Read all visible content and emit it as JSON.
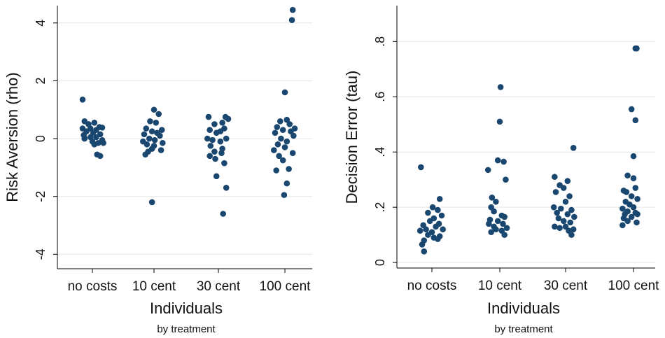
{
  "chart_data": [
    {
      "type": "scatter",
      "xlabel": "Individuals",
      "subtitle": "by treatment",
      "ylabel": "Risk Aversion (rho)",
      "categories": [
        "no costs",
        "10 cent",
        "30 cent",
        "100 cent"
      ],
      "ylim": [
        -4.5,
        4.6
      ],
      "yticks": [
        -4,
        -2,
        0,
        2,
        4
      ],
      "ytick_labels": [
        "-4",
        "-2",
        "0",
        "2",
        "4"
      ],
      "grid": true,
      "marker_color": "#1a476f",
      "groups": [
        {
          "category": "no costs",
          "points": [
            {
              "x": -0.25,
              "y": 1.35
            },
            {
              "x": -0.2,
              "y": 0.6
            },
            {
              "x": 0.05,
              "y": 0.55
            },
            {
              "x": -0.1,
              "y": 0.5
            },
            {
              "x": 0.18,
              "y": 0.4
            },
            {
              "x": -0.25,
              "y": 0.35
            },
            {
              "x": -0.05,
              "y": 0.35
            },
            {
              "x": 0.25,
              "y": 0.38
            },
            {
              "x": 0.1,
              "y": 0.3
            },
            {
              "x": -0.15,
              "y": 0.25
            },
            {
              "x": 0.02,
              "y": 0.2
            },
            {
              "x": -0.22,
              "y": 0.12
            },
            {
              "x": 0.2,
              "y": 0.15
            },
            {
              "x": -0.05,
              "y": 0.05
            },
            {
              "x": 0.1,
              "y": 0.05
            },
            {
              "x": -0.2,
              "y": 0.0
            },
            {
              "x": 0.25,
              "y": -0.05
            },
            {
              "x": 0.0,
              "y": -0.1
            },
            {
              "x": 0.15,
              "y": -0.15
            },
            {
              "x": 0.28,
              "y": -0.15
            },
            {
              "x": 0.05,
              "y": -0.2
            },
            {
              "x": 0.12,
              "y": -0.55
            },
            {
              "x": 0.2,
              "y": -0.6
            }
          ]
        },
        {
          "category": "10 cent",
          "points": [
            {
              "x": 0.0,
              "y": 1.0
            },
            {
              "x": 0.12,
              "y": 0.85
            },
            {
              "x": -0.1,
              "y": 0.6
            },
            {
              "x": 0.05,
              "y": 0.55
            },
            {
              "x": -0.2,
              "y": 0.35
            },
            {
              "x": 0.2,
              "y": 0.3
            },
            {
              "x": -0.05,
              "y": 0.25
            },
            {
              "x": 0.08,
              "y": 0.2
            },
            {
              "x": -0.25,
              "y": 0.15
            },
            {
              "x": 0.15,
              "y": 0.1
            },
            {
              "x": -0.12,
              "y": 0.0
            },
            {
              "x": 0.02,
              "y": -0.05
            },
            {
              "x": -0.28,
              "y": -0.1
            },
            {
              "x": 0.22,
              "y": -0.15
            },
            {
              "x": -0.18,
              "y": -0.2
            },
            {
              "x": 0.0,
              "y": -0.25
            },
            {
              "x": -0.05,
              "y": -0.35
            },
            {
              "x": 0.18,
              "y": -0.4
            },
            {
              "x": -0.15,
              "y": -0.45
            },
            {
              "x": -0.22,
              "y": -0.55
            },
            {
              "x": -0.05,
              "y": -2.2
            }
          ]
        },
        {
          "category": "30 cent",
          "points": [
            {
              "x": -0.25,
              "y": 0.75
            },
            {
              "x": 0.18,
              "y": 0.75
            },
            {
              "x": 0.25,
              "y": 0.68
            },
            {
              "x": 0.1,
              "y": 0.55
            },
            {
              "x": -0.1,
              "y": 0.5
            },
            {
              "x": 0.15,
              "y": 0.35
            },
            {
              "x": -0.22,
              "y": 0.3
            },
            {
              "x": 0.05,
              "y": 0.25
            },
            {
              "x": -0.05,
              "y": 0.2
            },
            {
              "x": 0.2,
              "y": 0.0
            },
            {
              "x": -0.28,
              "y": 0.0
            },
            {
              "x": -0.15,
              "y": -0.05
            },
            {
              "x": 0.05,
              "y": -0.1
            },
            {
              "x": -0.2,
              "y": -0.25
            },
            {
              "x": 0.1,
              "y": -0.35
            },
            {
              "x": -0.1,
              "y": -0.45
            },
            {
              "x": 0.08,
              "y": -0.5
            },
            {
              "x": -0.22,
              "y": -0.6
            },
            {
              "x": -0.08,
              "y": -0.7
            },
            {
              "x": 0.15,
              "y": -0.85
            },
            {
              "x": -0.05,
              "y": -1.3
            },
            {
              "x": 0.2,
              "y": -1.7
            },
            {
              "x": 0.12,
              "y": -2.6
            }
          ]
        },
        {
          "category": "100 cent",
          "points": [
            {
              "x": 0.2,
              "y": 4.45
            },
            {
              "x": 0.18,
              "y": 4.1
            },
            {
              "x": 0.0,
              "y": 1.6
            },
            {
              "x": 0.05,
              "y": 0.65
            },
            {
              "x": -0.12,
              "y": 0.6
            },
            {
              "x": 0.12,
              "y": 0.5
            },
            {
              "x": -0.2,
              "y": 0.4
            },
            {
              "x": 0.25,
              "y": 0.35
            },
            {
              "x": -0.05,
              "y": 0.3
            },
            {
              "x": 0.15,
              "y": 0.25
            },
            {
              "x": -0.25,
              "y": 0.2
            },
            {
              "x": 0.22,
              "y": 0.1
            },
            {
              "x": -0.1,
              "y": 0.0
            },
            {
              "x": 0.05,
              "y": -0.1
            },
            {
              "x": -0.18,
              "y": -0.2
            },
            {
              "x": 0.0,
              "y": -0.3
            },
            {
              "x": -0.28,
              "y": -0.4
            },
            {
              "x": 0.2,
              "y": -0.5
            },
            {
              "x": -0.15,
              "y": -0.6
            },
            {
              "x": -0.05,
              "y": -0.75
            },
            {
              "x": 0.1,
              "y": -1.05
            },
            {
              "x": -0.22,
              "y": -1.1
            },
            {
              "x": 0.05,
              "y": -1.55
            },
            {
              "x": -0.02,
              "y": -1.95
            }
          ]
        }
      ]
    },
    {
      "type": "scatter",
      "xlabel": "Individuals",
      "subtitle": "by treatment",
      "ylabel": "Decision Error (tau)",
      "categories": [
        "no costs",
        "10 cent",
        "30 cent",
        "100 cent"
      ],
      "ylim": [
        -0.02,
        0.93
      ],
      "yticks": [
        0,
        0.2,
        0.4,
        0.6,
        0.8
      ],
      "ytick_labels": [
        "0",
        ".2",
        ".4",
        ".6",
        ".8"
      ],
      "grid": true,
      "marker_color": "#1a476f",
      "groups": [
        {
          "category": "no costs",
          "points": [
            {
              "x": -0.28,
              "y": 0.345
            },
            {
              "x": 0.2,
              "y": 0.23
            },
            {
              "x": 0.02,
              "y": 0.2
            },
            {
              "x": 0.15,
              "y": 0.19
            },
            {
              "x": -0.1,
              "y": 0.18
            },
            {
              "x": 0.25,
              "y": 0.17
            },
            {
              "x": 0.05,
              "y": 0.16
            },
            {
              "x": -0.05,
              "y": 0.15
            },
            {
              "x": 0.18,
              "y": 0.14
            },
            {
              "x": -0.22,
              "y": 0.135
            },
            {
              "x": 0.1,
              "y": 0.13
            },
            {
              "x": -0.15,
              "y": 0.12
            },
            {
              "x": 0.28,
              "y": 0.12
            },
            {
              "x": -0.3,
              "y": 0.115
            },
            {
              "x": 0.0,
              "y": 0.11
            },
            {
              "x": -0.1,
              "y": 0.1
            },
            {
              "x": 0.2,
              "y": 0.095
            },
            {
              "x": 0.05,
              "y": 0.09
            },
            {
              "x": 0.15,
              "y": 0.085
            },
            {
              "x": -0.2,
              "y": 0.08
            },
            {
              "x": -0.25,
              "y": 0.065
            },
            {
              "x": -0.2,
              "y": 0.04
            }
          ]
        },
        {
          "category": "10 cent",
          "points": [
            {
              "x": 0.02,
              "y": 0.635
            },
            {
              "x": 0.0,
              "y": 0.51
            },
            {
              "x": -0.05,
              "y": 0.37
            },
            {
              "x": 0.1,
              "y": 0.365
            },
            {
              "x": -0.3,
              "y": 0.335
            },
            {
              "x": 0.15,
              "y": 0.3
            },
            {
              "x": -0.2,
              "y": 0.235
            },
            {
              "x": -0.1,
              "y": 0.22
            },
            {
              "x": -0.22,
              "y": 0.2
            },
            {
              "x": -0.15,
              "y": 0.185
            },
            {
              "x": 0.05,
              "y": 0.17
            },
            {
              "x": 0.12,
              "y": 0.165
            },
            {
              "x": -0.25,
              "y": 0.155
            },
            {
              "x": -0.05,
              "y": 0.15
            },
            {
              "x": 0.08,
              "y": 0.14
            },
            {
              "x": -0.28,
              "y": 0.14
            },
            {
              "x": -0.15,
              "y": 0.13
            },
            {
              "x": 0.18,
              "y": 0.125
            },
            {
              "x": -0.1,
              "y": 0.12
            },
            {
              "x": 0.05,
              "y": 0.115
            },
            {
              "x": -0.22,
              "y": 0.11
            },
            {
              "x": 0.12,
              "y": 0.1
            }
          ]
        },
        {
          "category": "30 cent",
          "points": [
            {
              "x": 0.2,
              "y": 0.415
            },
            {
              "x": -0.28,
              "y": 0.31
            },
            {
              "x": 0.05,
              "y": 0.295
            },
            {
              "x": -0.15,
              "y": 0.28
            },
            {
              "x": -0.05,
              "y": 0.27
            },
            {
              "x": -0.25,
              "y": 0.255
            },
            {
              "x": 0.1,
              "y": 0.24
            },
            {
              "x": 0.0,
              "y": 0.22
            },
            {
              "x": -0.3,
              "y": 0.2
            },
            {
              "x": -0.12,
              "y": 0.195
            },
            {
              "x": 0.15,
              "y": 0.19
            },
            {
              "x": -0.22,
              "y": 0.18
            },
            {
              "x": 0.05,
              "y": 0.175
            },
            {
              "x": 0.22,
              "y": 0.165
            },
            {
              "x": -0.18,
              "y": 0.16
            },
            {
              "x": -0.05,
              "y": 0.15
            },
            {
              "x": 0.12,
              "y": 0.145
            },
            {
              "x": -0.28,
              "y": 0.13
            },
            {
              "x": 0.0,
              "y": 0.13
            },
            {
              "x": -0.15,
              "y": 0.125
            },
            {
              "x": 0.2,
              "y": 0.12
            },
            {
              "x": 0.08,
              "y": 0.115
            },
            {
              "x": 0.15,
              "y": 0.1
            }
          ]
        },
        {
          "category": "100 cent",
          "points": [
            {
              "x": 0.05,
              "y": 0.775
            },
            {
              "x": 0.08,
              "y": 0.775
            },
            {
              "x": -0.05,
              "y": 0.555
            },
            {
              "x": 0.05,
              "y": 0.515
            },
            {
              "x": 0.0,
              "y": 0.385
            },
            {
              "x": -0.15,
              "y": 0.315
            },
            {
              "x": 0.0,
              "y": 0.305
            },
            {
              "x": -0.25,
              "y": 0.26
            },
            {
              "x": 0.05,
              "y": 0.27
            },
            {
              "x": -0.18,
              "y": 0.255
            },
            {
              "x": -0.05,
              "y": 0.24
            },
            {
              "x": 0.1,
              "y": 0.23
            },
            {
              "x": -0.2,
              "y": 0.22
            },
            {
              "x": -0.1,
              "y": 0.21
            },
            {
              "x": 0.0,
              "y": 0.2
            },
            {
              "x": -0.28,
              "y": 0.195
            },
            {
              "x": -0.15,
              "y": 0.185
            },
            {
              "x": 0.05,
              "y": 0.18
            },
            {
              "x": -0.22,
              "y": 0.175
            },
            {
              "x": 0.1,
              "y": 0.175
            },
            {
              "x": -0.05,
              "y": 0.165
            },
            {
              "x": -0.25,
              "y": 0.16
            },
            {
              "x": -0.15,
              "y": 0.15
            },
            {
              "x": 0.08,
              "y": 0.145
            },
            {
              "x": -0.28,
              "y": 0.135
            }
          ]
        }
      ]
    }
  ]
}
